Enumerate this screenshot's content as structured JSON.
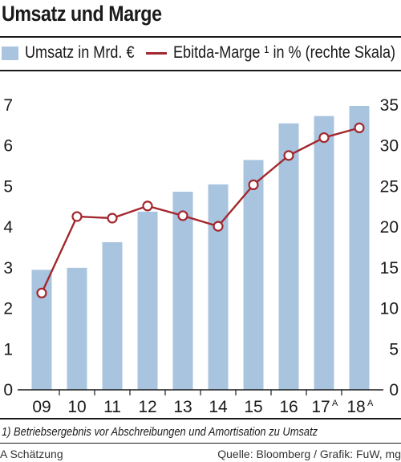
{
  "title": "Umsatz und Marge",
  "legend": {
    "bars_label": "Umsatz in Mrd. €",
    "line_label": "Ebitda-Marge ¹ in % (rechte Skala)"
  },
  "footnote": "1) Betriebsergebnis vor Abschreibungen und Amortisation zu Umsatz",
  "estimate_note": "A Schätzung",
  "source": "Quelle: Bloomberg / Grafik: FuW, mg",
  "colors": {
    "bars": "#a9c4de",
    "line": "#a3272e",
    "marker_fill": "#ffffff",
    "text": "#1a1a1a"
  },
  "chart_data": {
    "type": "bar",
    "categories": [
      "09",
      "10",
      "11",
      "12",
      "13",
      "14",
      "15",
      "16",
      "17",
      "18"
    ],
    "category_superscripts": [
      "",
      "",
      "",
      "",
      "",
      "",
      "",
      "",
      "A",
      "A"
    ],
    "series": [
      {
        "name": "Umsatz in Mrd. €",
        "type": "bar",
        "axis": "left",
        "values": [
          2.95,
          3.0,
          3.63,
          4.38,
          4.87,
          5.05,
          5.65,
          6.55,
          6.73,
          6.98
        ]
      },
      {
        "name": "Ebitda-Marge ¹ in % (rechte Skala)",
        "type": "line",
        "axis": "right",
        "values": [
          11.9,
          21.3,
          21.1,
          22.6,
          21.4,
          20.1,
          25.2,
          28.8,
          31.0,
          32.2
        ]
      }
    ],
    "y_left": {
      "ylim": [
        0,
        7
      ],
      "ticks": [
        0,
        1,
        2,
        3,
        4,
        5,
        6,
        7
      ]
    },
    "y_right": {
      "ylim": [
        0,
        35
      ],
      "ticks": [
        0,
        5,
        10,
        15,
        20,
        25,
        30,
        35
      ]
    },
    "grid": false,
    "legend_position": "top"
  }
}
